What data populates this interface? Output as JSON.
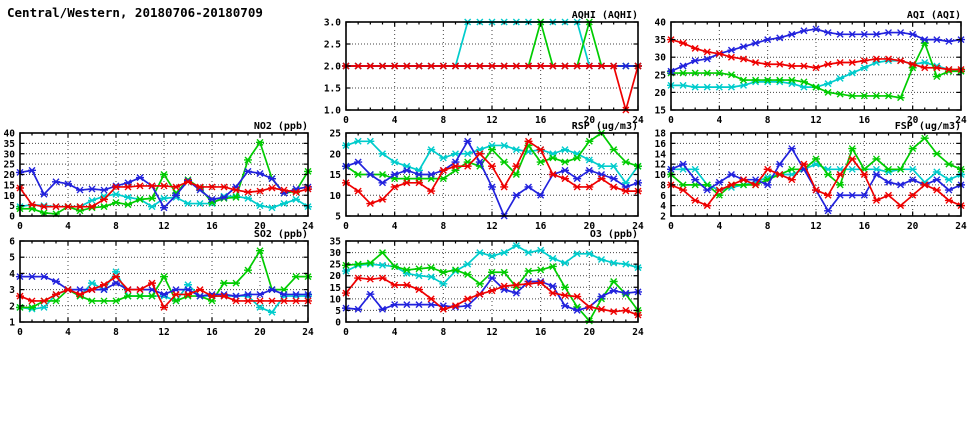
{
  "page_title": "Central/Western, 20180706-20180709",
  "colors": {
    "red": "#ee0000",
    "blue": "#2222dd",
    "green": "#00cc00",
    "cyan": "#00cccc",
    "axis": "#000000",
    "grid": "#444444"
  },
  "chart_data": [
    {
      "id": "aqhi",
      "title": "AQHI (AQHI)",
      "type": "line",
      "grid_pos": {
        "row": 0,
        "col": 1
      },
      "xlim": [
        0,
        24
      ],
      "xticks": [
        0,
        4,
        8,
        12,
        16,
        20,
        24
      ],
      "ylim": [
        1.0,
        3.0
      ],
      "yticks": [
        1.0,
        1.5,
        2.0,
        2.5,
        3.0
      ],
      "ydecimals": 1,
      "series": [
        {
          "name": "cyan-series",
          "color": "cyan",
          "values": [
            2,
            2,
            2,
            2,
            2,
            2,
            2,
            2,
            2,
            2,
            3,
            3,
            3,
            3,
            3,
            3,
            3,
            3,
            3,
            3,
            2,
            2,
            2,
            2,
            2
          ]
        },
        {
          "name": "green-series",
          "color": "green",
          "values": [
            2,
            2,
            2,
            2,
            2,
            2,
            2,
            2,
            2,
            2,
            2,
            2,
            2,
            2,
            2,
            2,
            3,
            2,
            2,
            2,
            3,
            2,
            2,
            2,
            2
          ]
        },
        {
          "name": "blue-series",
          "color": "blue",
          "values": [
            2,
            2,
            2,
            2,
            2,
            2,
            2,
            2,
            2,
            2,
            2,
            2,
            2,
            2,
            2,
            2,
            2,
            2,
            2,
            2,
            2,
            2,
            2,
            2,
            2
          ]
        },
        {
          "name": "red-series",
          "color": "red",
          "values": [
            2,
            2,
            2,
            2,
            2,
            2,
            2,
            2,
            2,
            2,
            2,
            2,
            2,
            2,
            2,
            2,
            2,
            2,
            2,
            2,
            2,
            2,
            2,
            1,
            2
          ]
        }
      ]
    },
    {
      "id": "aqi",
      "title": "AQI (AQI)",
      "type": "line",
      "grid_pos": {
        "row": 0,
        "col": 2
      },
      "xlim": [
        0,
        24
      ],
      "xticks": [
        0,
        4,
        8,
        12,
        16,
        20,
        24
      ],
      "ylim": [
        15,
        40
      ],
      "yticks": [
        15,
        20,
        25,
        30,
        35,
        40
      ],
      "ydecimals": 0,
      "series": [
        {
          "name": "cyan-series",
          "color": "cyan",
          "values": [
            22,
            22,
            21.5,
            21.5,
            21.5,
            21.5,
            22,
            23,
            23,
            23,
            22.5,
            21.5,
            21.5,
            22.5,
            24,
            25.5,
            27,
            28.5,
            29,
            29,
            28,
            28.5,
            27.5,
            26.5,
            26
          ]
        },
        {
          "name": "green-series",
          "color": "green",
          "values": [
            25.5,
            25.5,
            25.5,
            25.5,
            25.5,
            25,
            23.5,
            23.5,
            23.5,
            23.5,
            23.5,
            23,
            21.5,
            20,
            19.5,
            19,
            19,
            19,
            19,
            18.5,
            27,
            34,
            24.5,
            26,
            26
          ]
        },
        {
          "name": "blue-series",
          "color": "blue",
          "values": [
            26,
            27.5,
            29,
            29.5,
            31,
            32,
            33,
            34,
            35,
            35.5,
            36.5,
            37.5,
            38,
            37,
            36.5,
            36.5,
            36.5,
            36.5,
            37,
            37,
            36.5,
            35,
            35,
            34.5,
            35
          ]
        },
        {
          "name": "red-series",
          "color": "red",
          "values": [
            35,
            34,
            32.5,
            31.5,
            31,
            30,
            29.5,
            28.5,
            28,
            28,
            27.5,
            27.5,
            27,
            28,
            28.5,
            28.5,
            29,
            29.5,
            29.5,
            29,
            28,
            27,
            27,
            26.5,
            26.5
          ]
        }
      ]
    },
    {
      "id": "no2",
      "title": "NO2 (ppb)",
      "type": "line",
      "grid_pos": {
        "row": 1,
        "col": 0
      },
      "xlim": [
        0,
        24
      ],
      "xticks": [
        0,
        4,
        8,
        12,
        16,
        20,
        24
      ],
      "ylim": [
        0,
        40
      ],
      "yticks": [
        0,
        5,
        10,
        15,
        20,
        25,
        30,
        35,
        40
      ],
      "ydecimals": 0,
      "series": [
        {
          "name": "cyan-series",
          "color": "cyan",
          "values": [
            4.5,
            5.5,
            5,
            4.5,
            4.5,
            4.5,
            7.5,
            9.5,
            10.5,
            9,
            8,
            4.5,
            8.5,
            9,
            6,
            6,
            6,
            9.5,
            9.5,
            8.5,
            5,
            4,
            6,
            8,
            4.5
          ]
        },
        {
          "name": "green-series",
          "color": "green",
          "values": [
            3.5,
            3.5,
            1.5,
            1,
            4.5,
            2.5,
            4,
            4.5,
            6.5,
            5.5,
            8,
            8.5,
            20,
            11,
            17.5,
            13.5,
            6.5,
            8.5,
            9,
            27,
            35.5,
            18,
            11,
            12,
            21.5
          ]
        },
        {
          "name": "blue-series",
          "color": "blue",
          "values": [
            21,
            22,
            10.5,
            16.5,
            15.5,
            12.5,
            13,
            12.5,
            14.5,
            16,
            18.5,
            14.5,
            4,
            10,
            17,
            12.5,
            8,
            9,
            14,
            21.5,
            20.5,
            18,
            11,
            13,
            14
          ]
        },
        {
          "name": "red-series",
          "color": "red",
          "values": [
            13.5,
            5.5,
            4.5,
            4.5,
            4.5,
            4.5,
            4.5,
            8,
            14,
            14,
            14.5,
            14.5,
            14.5,
            14,
            16.5,
            14,
            14,
            14,
            12.5,
            11.5,
            12,
            13.5,
            12.5,
            11.5,
            13
          ]
        }
      ]
    },
    {
      "id": "rsp",
      "title": "RSP (ug/m3)",
      "type": "line",
      "grid_pos": {
        "row": 1,
        "col": 1
      },
      "xlim": [
        0,
        24
      ],
      "xticks": [
        0,
        4,
        8,
        12,
        16,
        20,
        24
      ],
      "ylim": [
        5,
        25
      ],
      "yticks": [
        5,
        10,
        15,
        20,
        25
      ],
      "ydecimals": 0,
      "series": [
        {
          "name": "cyan-series",
          "color": "cyan",
          "values": [
            22,
            23,
            23,
            20,
            18,
            17,
            16,
            21,
            19,
            20,
            20,
            21,
            22,
            22,
            21,
            20.5,
            21,
            20,
            21,
            20,
            18.5,
            17,
            17,
            13,
            17
          ]
        },
        {
          "name": "green-series",
          "color": "green",
          "values": [
            17,
            15,
            15,
            15,
            14,
            14,
            14,
            14,
            14,
            16,
            18,
            17,
            21,
            18,
            15,
            22,
            18,
            19,
            18,
            19,
            23,
            25,
            21,
            18,
            17
          ]
        },
        {
          "name": "blue-series",
          "color": "blue",
          "values": [
            17,
            18,
            15,
            13,
            15,
            16,
            15,
            15,
            16,
            18,
            23,
            18,
            12,
            5,
            10,
            12,
            10,
            15,
            16,
            14,
            16,
            15,
            14,
            12,
            13
          ]
        },
        {
          "name": "red-series",
          "color": "red",
          "values": [
            13,
            11,
            8,
            9,
            12,
            13,
            13,
            11,
            16,
            17,
            17,
            20,
            17,
            12,
            17,
            23,
            21,
            15,
            14,
            12,
            12,
            14,
            12,
            11,
            11
          ]
        }
      ]
    },
    {
      "id": "fsp",
      "title": "FSP (ug/m3)",
      "type": "line",
      "grid_pos": {
        "row": 1,
        "col": 2
      },
      "xlim": [
        0,
        24
      ],
      "xticks": [
        0,
        4,
        8,
        12,
        16,
        20,
        24
      ],
      "ylim": [
        2,
        18
      ],
      "yticks": [
        2,
        4,
        6,
        8,
        10,
        12,
        14,
        16,
        18
      ],
      "ydecimals": 0,
      "series": [
        {
          "name": "cyan-series",
          "color": "cyan",
          "values": [
            11,
            11,
            11,
            8,
            7,
            7.5,
            8,
            8.5,
            9.5,
            10,
            10,
            11,
            12,
            11,
            11,
            11,
            11,
            11,
            10.5,
            11,
            11,
            8.5,
            10.5,
            9,
            10
          ]
        },
        {
          "name": "green-series",
          "color": "green",
          "values": [
            10,
            8,
            8,
            8,
            6,
            8,
            8,
            8,
            9,
            10,
            11,
            11,
            13,
            10,
            8,
            15,
            11,
            13,
            11,
            11,
            15,
            17,
            14,
            12,
            11
          ]
        },
        {
          "name": "blue-series",
          "color": "blue",
          "values": [
            11,
            12,
            9,
            7,
            8.5,
            10,
            9,
            9,
            8,
            12,
            15,
            11,
            7,
            3,
            6,
            6,
            6,
            10,
            8.5,
            8,
            9,
            8,
            9,
            7,
            8
          ]
        },
        {
          "name": "red-series",
          "color": "red",
          "values": [
            8,
            7,
            5,
            4,
            7,
            8,
            9,
            8,
            11,
            10,
            9,
            12,
            7,
            6,
            10,
            13,
            10,
            5,
            6,
            4,
            6,
            8,
            7,
            5,
            4
          ]
        }
      ]
    },
    {
      "id": "so2",
      "title": "SO2 (ppb)",
      "type": "line",
      "grid_pos": {
        "row": 2,
        "col": 0
      },
      "xlim": [
        0,
        24
      ],
      "xticks": [
        0,
        4,
        8,
        12,
        16,
        20,
        24
      ],
      "ylim": [
        1,
        6
      ],
      "yticks": [
        1,
        2,
        3,
        4,
        5,
        6
      ],
      "ydecimals": 0,
      "series": [
        {
          "name": "cyan-series",
          "color": "cyan",
          "values": [
            1.9,
            1.8,
            1.9,
            2.7,
            3.0,
            2.6,
            3.4,
            3.0,
            4.1,
            2.6,
            2.6,
            2.6,
            2.6,
            2.3,
            3.3,
            2.6,
            2.6,
            2.6,
            2.6,
            2.6,
            1.9,
            1.6,
            2.6,
            2.6,
            2.6
          ]
        },
        {
          "name": "green-series",
          "color": "green",
          "values": [
            1.9,
            1.9,
            2.3,
            2.3,
            3.0,
            2.6,
            2.3,
            2.3,
            2.3,
            2.6,
            2.6,
            2.6,
            3.8,
            2.3,
            2.6,
            2.6,
            2.3,
            3.4,
            3.4,
            4.2,
            5.4,
            3.0,
            3.0,
            3.8,
            3.8
          ]
        },
        {
          "name": "blue-series",
          "color": "blue",
          "values": [
            3.8,
            3.8,
            3.8,
            3.5,
            3.0,
            3.0,
            3.0,
            3.0,
            3.4,
            3.0,
            3.0,
            3.0,
            2.7,
            3.0,
            3.0,
            2.6,
            2.7,
            2.7,
            2.6,
            2.7,
            2.7,
            3.0,
            2.7,
            2.7,
            2.7
          ]
        },
        {
          "name": "red-series",
          "color": "red",
          "values": [
            2.6,
            2.3,
            2.3,
            2.7,
            3.0,
            2.7,
            3.0,
            3.3,
            3.8,
            3.0,
            3.0,
            3.4,
            1.9,
            2.7,
            2.7,
            3.0,
            2.6,
            2.6,
            2.3,
            2.3,
            2.3,
            2.3,
            2.3,
            2.3,
            2.3
          ]
        }
      ]
    },
    {
      "id": "o3",
      "title": "O3 (ppb)",
      "type": "line",
      "grid_pos": {
        "row": 2,
        "col": 1
      },
      "xlim": [
        0,
        24
      ],
      "xticks": [
        0,
        4,
        8,
        12,
        16,
        20,
        24
      ],
      "ylim": [
        0,
        35
      ],
      "yticks": [
        0,
        5,
        10,
        15,
        20,
        25,
        30,
        35
      ],
      "ydecimals": 0,
      "series": [
        {
          "name": "cyan-series",
          "color": "cyan",
          "values": [
            22,
            24.5,
            25,
            24.5,
            24,
            21,
            20,
            19.5,
            16.5,
            22,
            25,
            30,
            28.5,
            30,
            33,
            30,
            31,
            27.5,
            25.5,
            29.5,
            29.5,
            27,
            25.5,
            25,
            23.5
          ]
        },
        {
          "name": "green-series",
          "color": "green",
          "values": [
            24.5,
            25,
            25.5,
            30,
            24,
            22.5,
            23,
            23.5,
            21.5,
            22.5,
            20.5,
            16.5,
            21.5,
            21.5,
            15,
            22,
            22.5,
            24,
            15,
            6.5,
            0.5,
            10,
            17.5,
            12,
            5
          ]
        },
        {
          "name": "blue-series",
          "color": "blue",
          "values": [
            6,
            5.5,
            12,
            5.5,
            7.5,
            7.5,
            7.5,
            7.5,
            7,
            6.5,
            7,
            12,
            19,
            14,
            12.5,
            17.5,
            17.5,
            15.5,
            7,
            5,
            6.5,
            11,
            13.5,
            12.5,
            13
          ]
        },
        {
          "name": "red-series",
          "color": "red",
          "values": [
            12.5,
            19,
            18.5,
            19,
            16,
            16,
            14,
            10,
            5.5,
            7,
            10,
            12,
            13.5,
            15.5,
            16,
            16.5,
            17,
            12.5,
            11.5,
            11,
            6.5,
            5.5,
            4.5,
            5,
            3
          ]
        }
      ]
    }
  ]
}
